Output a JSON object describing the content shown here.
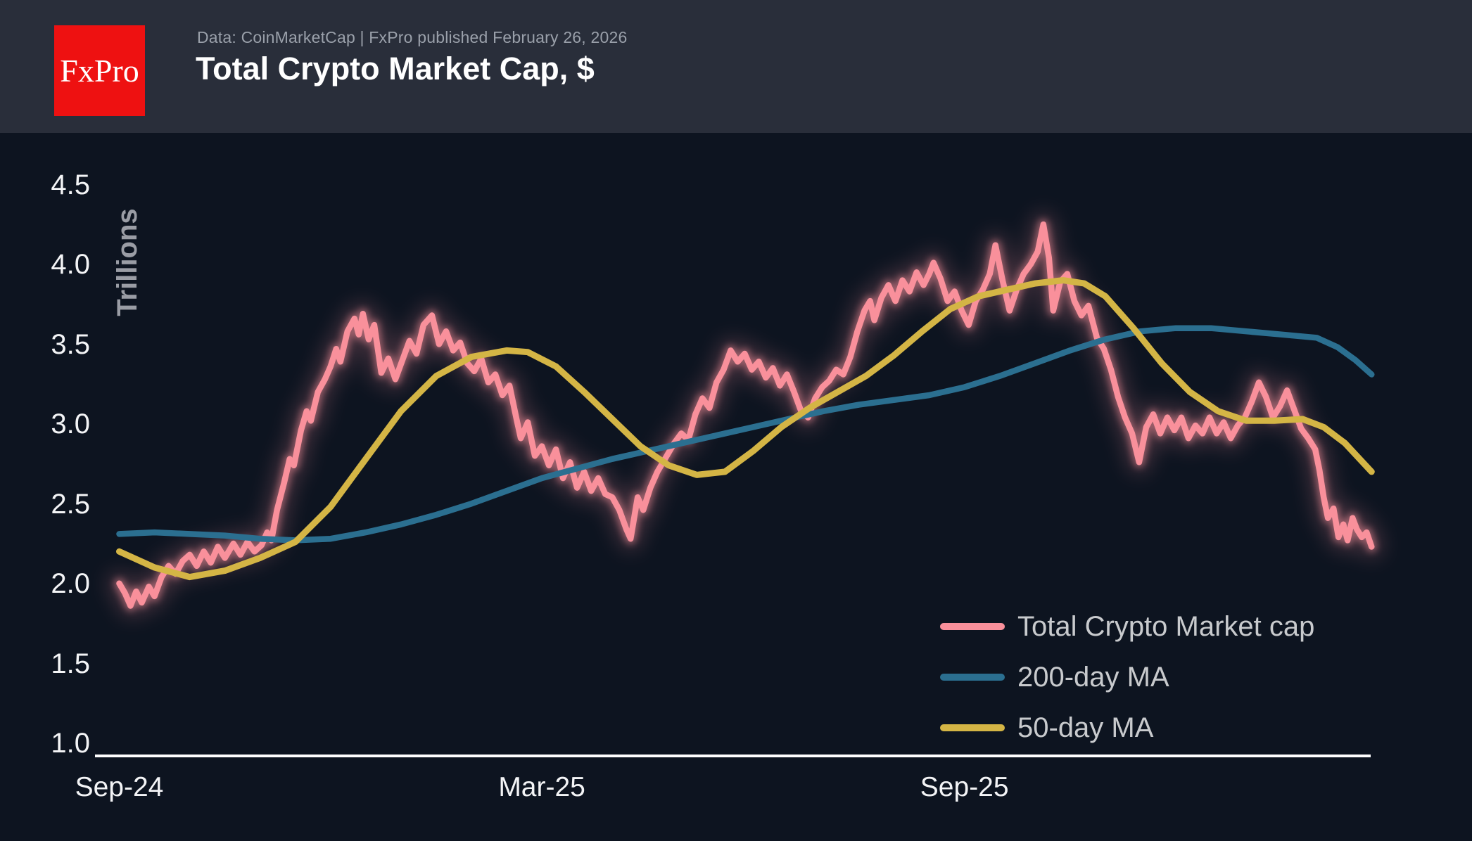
{
  "header": {
    "logo_text": "FxPro",
    "logo_color": "#ee1111",
    "subtitle": "Data: CoinMarketCap | FxPro published February 26, 2026",
    "title": "Total Crypto Market Cap, $"
  },
  "colors": {
    "page_background": "#0d1420",
    "header_background": "#292e3a",
    "axis_line": "#ffffff",
    "tick_label": "#f3f4f6",
    "legend_label": "#c8cacd",
    "y_axis_title": "#9a9da5"
  },
  "chart_data": {
    "type": "line",
    "title": "Total Crypto Market Cap, $",
    "ylabel": "Trillions",
    "xlabel": "",
    "grid": false,
    "legend_position": "bottom-right",
    "ylim": [
      1.0,
      4.5
    ],
    "y_ticks": [
      {
        "label": "4.5",
        "value": 4.5
      },
      {
        "label": "4.0",
        "value": 4.0
      },
      {
        "label": "3.5",
        "value": 3.5
      },
      {
        "label": "3.0",
        "value": 3.0
      },
      {
        "label": "2.5",
        "value": 2.5
      },
      {
        "label": "2.0",
        "value": 2.0
      },
      {
        "label": "1.5",
        "value": 1.5
      },
      {
        "label": "1.0",
        "value": 1.0
      }
    ],
    "x_unit": "months since Sep-2024",
    "x_range": [
      0,
      17.78
    ],
    "x_ticks": [
      {
        "label": "Sep-24",
        "t": 0
      },
      {
        "label": "Mar-25",
        "t": 6
      },
      {
        "label": "Sep-25",
        "t": 12
      }
    ],
    "series": [
      {
        "name": "Total Crypto Market cap",
        "color": "#f9909b",
        "glow": true,
        "points": [
          [
            0.0,
            2.02
          ],
          [
            0.08,
            1.96
          ],
          [
            0.16,
            1.88
          ],
          [
            0.24,
            1.97
          ],
          [
            0.32,
            1.9
          ],
          [
            0.42,
            2.0
          ],
          [
            0.5,
            1.94
          ],
          [
            0.6,
            2.06
          ],
          [
            0.7,
            2.13
          ],
          [
            0.8,
            2.08
          ],
          [
            0.9,
            2.16
          ],
          [
            1.0,
            2.2
          ],
          [
            1.1,
            2.13
          ],
          [
            1.2,
            2.22
          ],
          [
            1.3,
            2.15
          ],
          [
            1.4,
            2.25
          ],
          [
            1.5,
            2.18
          ],
          [
            1.62,
            2.27
          ],
          [
            1.72,
            2.2
          ],
          [
            1.82,
            2.28
          ],
          [
            1.92,
            2.22
          ],
          [
            2.02,
            2.26
          ],
          [
            2.1,
            2.34
          ],
          [
            2.16,
            2.29
          ],
          [
            2.24,
            2.48
          ],
          [
            2.34,
            2.65
          ],
          [
            2.42,
            2.8
          ],
          [
            2.48,
            2.76
          ],
          [
            2.58,
            2.98
          ],
          [
            2.66,
            3.1
          ],
          [
            2.72,
            3.04
          ],
          [
            2.82,
            3.22
          ],
          [
            2.92,
            3.3
          ],
          [
            3.0,
            3.38
          ],
          [
            3.08,
            3.49
          ],
          [
            3.14,
            3.41
          ],
          [
            3.24,
            3.6
          ],
          [
            3.34,
            3.68
          ],
          [
            3.4,
            3.58
          ],
          [
            3.46,
            3.71
          ],
          [
            3.54,
            3.55
          ],
          [
            3.62,
            3.64
          ],
          [
            3.72,
            3.34
          ],
          [
            3.82,
            3.43
          ],
          [
            3.92,
            3.3
          ],
          [
            4.02,
            3.42
          ],
          [
            4.12,
            3.54
          ],
          [
            4.22,
            3.46
          ],
          [
            4.32,
            3.64
          ],
          [
            4.44,
            3.7
          ],
          [
            4.54,
            3.52
          ],
          [
            4.64,
            3.6
          ],
          [
            4.74,
            3.48
          ],
          [
            4.84,
            3.53
          ],
          [
            4.94,
            3.4
          ],
          [
            5.04,
            3.35
          ],
          [
            5.14,
            3.43
          ],
          [
            5.24,
            3.28
          ],
          [
            5.34,
            3.33
          ],
          [
            5.44,
            3.2
          ],
          [
            5.54,
            3.26
          ],
          [
            5.64,
            3.05
          ],
          [
            5.7,
            2.93
          ],
          [
            5.8,
            3.03
          ],
          [
            5.9,
            2.82
          ],
          [
            6.0,
            2.88
          ],
          [
            6.1,
            2.76
          ],
          [
            6.2,
            2.86
          ],
          [
            6.3,
            2.68
          ],
          [
            6.4,
            2.78
          ],
          [
            6.5,
            2.62
          ],
          [
            6.6,
            2.72
          ],
          [
            6.7,
            2.6
          ],
          [
            6.8,
            2.68
          ],
          [
            6.9,
            2.58
          ],
          [
            7.0,
            2.56
          ],
          [
            7.1,
            2.48
          ],
          [
            7.2,
            2.36
          ],
          [
            7.26,
            2.3
          ],
          [
            7.36,
            2.56
          ],
          [
            7.44,
            2.48
          ],
          [
            7.54,
            2.62
          ],
          [
            7.64,
            2.72
          ],
          [
            7.76,
            2.81
          ],
          [
            7.88,
            2.9
          ],
          [
            7.98,
            2.96
          ],
          [
            8.08,
            2.92
          ],
          [
            8.18,
            3.08
          ],
          [
            8.28,
            3.18
          ],
          [
            8.38,
            3.12
          ],
          [
            8.48,
            3.28
          ],
          [
            8.58,
            3.36
          ],
          [
            8.68,
            3.48
          ],
          [
            8.78,
            3.41
          ],
          [
            8.88,
            3.46
          ],
          [
            8.98,
            3.36
          ],
          [
            9.08,
            3.41
          ],
          [
            9.18,
            3.31
          ],
          [
            9.28,
            3.37
          ],
          [
            9.38,
            3.26
          ],
          [
            9.48,
            3.33
          ],
          [
            9.58,
            3.22
          ],
          [
            9.68,
            3.1
          ],
          [
            9.78,
            3.06
          ],
          [
            9.88,
            3.18
          ],
          [
            9.98,
            3.25
          ],
          [
            10.08,
            3.29
          ],
          [
            10.18,
            3.36
          ],
          [
            10.28,
            3.33
          ],
          [
            10.38,
            3.44
          ],
          [
            10.48,
            3.6
          ],
          [
            10.58,
            3.73
          ],
          [
            10.66,
            3.79
          ],
          [
            10.72,
            3.67
          ],
          [
            10.82,
            3.81
          ],
          [
            10.92,
            3.89
          ],
          [
            11.02,
            3.79
          ],
          [
            11.12,
            3.92
          ],
          [
            11.22,
            3.85
          ],
          [
            11.32,
            3.97
          ],
          [
            11.42,
            3.89
          ],
          [
            11.5,
            3.96
          ],
          [
            11.56,
            4.03
          ],
          [
            11.66,
            3.93
          ],
          [
            11.76,
            3.79
          ],
          [
            11.86,
            3.85
          ],
          [
            11.96,
            3.73
          ],
          [
            12.06,
            3.64
          ],
          [
            12.16,
            3.79
          ],
          [
            12.26,
            3.86
          ],
          [
            12.36,
            3.96
          ],
          [
            12.44,
            4.14
          ],
          [
            12.54,
            3.92
          ],
          [
            12.64,
            3.73
          ],
          [
            12.74,
            3.86
          ],
          [
            12.84,
            3.96
          ],
          [
            12.94,
            4.02
          ],
          [
            13.04,
            4.1
          ],
          [
            13.12,
            4.27
          ],
          [
            13.2,
            4.06
          ],
          [
            13.26,
            3.73
          ],
          [
            13.36,
            3.91
          ],
          [
            13.46,
            3.96
          ],
          [
            13.56,
            3.79
          ],
          [
            13.66,
            3.7
          ],
          [
            13.76,
            3.76
          ],
          [
            13.88,
            3.56
          ],
          [
            13.98,
            3.49
          ],
          [
            14.08,
            3.36
          ],
          [
            14.18,
            3.19
          ],
          [
            14.28,
            3.06
          ],
          [
            14.38,
            2.96
          ],
          [
            14.48,
            2.78
          ],
          [
            14.58,
            3.0
          ],
          [
            14.68,
            3.08
          ],
          [
            14.78,
            2.96
          ],
          [
            14.88,
            3.06
          ],
          [
            14.98,
            2.98
          ],
          [
            15.08,
            3.06
          ],
          [
            15.18,
            2.93
          ],
          [
            15.28,
            3.01
          ],
          [
            15.38,
            2.96
          ],
          [
            15.48,
            3.06
          ],
          [
            15.58,
            2.96
          ],
          [
            15.68,
            3.03
          ],
          [
            15.78,
            2.93
          ],
          [
            15.88,
            3.01
          ],
          [
            15.98,
            3.06
          ],
          [
            16.08,
            3.16
          ],
          [
            16.18,
            3.28
          ],
          [
            16.28,
            3.19
          ],
          [
            16.38,
            3.06
          ],
          [
            16.48,
            3.13
          ],
          [
            16.58,
            3.23
          ],
          [
            16.68,
            3.11
          ],
          [
            16.78,
            2.99
          ],
          [
            16.88,
            2.93
          ],
          [
            16.98,
            2.86
          ],
          [
            17.04,
            2.73
          ],
          [
            17.1,
            2.56
          ],
          [
            17.16,
            2.43
          ],
          [
            17.24,
            2.49
          ],
          [
            17.31,
            2.31
          ],
          [
            17.38,
            2.39
          ],
          [
            17.44,
            2.29
          ],
          [
            17.51,
            2.43
          ],
          [
            17.57,
            2.36
          ],
          [
            17.64,
            2.31
          ],
          [
            17.71,
            2.34
          ],
          [
            17.78,
            2.25
          ]
        ]
      },
      {
        "name": "200-day MA",
        "color": "#2b6f90",
        "glow": false,
        "points": [
          [
            0.0,
            2.33
          ],
          [
            0.5,
            2.34
          ],
          [
            1.0,
            2.33
          ],
          [
            1.5,
            2.32
          ],
          [
            2.0,
            2.3
          ],
          [
            2.5,
            2.29
          ],
          [
            3.0,
            2.3
          ],
          [
            3.5,
            2.34
          ],
          [
            4.0,
            2.39
          ],
          [
            4.5,
            2.45
          ],
          [
            5.0,
            2.52
          ],
          [
            5.5,
            2.6
          ],
          [
            6.0,
            2.68
          ],
          [
            6.5,
            2.74
          ],
          [
            7.0,
            2.8
          ],
          [
            7.5,
            2.85
          ],
          [
            8.0,
            2.9
          ],
          [
            8.5,
            2.95
          ],
          [
            9.0,
            3.0
          ],
          [
            9.5,
            3.05
          ],
          [
            10.0,
            3.1
          ],
          [
            10.5,
            3.14
          ],
          [
            11.0,
            3.17
          ],
          [
            11.5,
            3.2
          ],
          [
            12.0,
            3.25
          ],
          [
            12.5,
            3.32
          ],
          [
            13.0,
            3.4
          ],
          [
            13.5,
            3.48
          ],
          [
            14.0,
            3.55
          ],
          [
            14.5,
            3.6
          ],
          [
            15.0,
            3.62
          ],
          [
            15.5,
            3.62
          ],
          [
            16.0,
            3.6
          ],
          [
            16.5,
            3.58
          ],
          [
            17.0,
            3.56
          ],
          [
            17.3,
            3.5
          ],
          [
            17.55,
            3.42
          ],
          [
            17.78,
            3.33
          ]
        ]
      },
      {
        "name": "50-day MA",
        "color": "#d4b545",
        "glow": false,
        "points": [
          [
            0.0,
            2.22
          ],
          [
            0.5,
            2.12
          ],
          [
            1.0,
            2.06
          ],
          [
            1.5,
            2.1
          ],
          [
            2.0,
            2.18
          ],
          [
            2.5,
            2.28
          ],
          [
            3.0,
            2.5
          ],
          [
            3.5,
            2.8
          ],
          [
            4.0,
            3.1
          ],
          [
            4.5,
            3.32
          ],
          [
            5.0,
            3.44
          ],
          [
            5.5,
            3.48
          ],
          [
            5.8,
            3.47
          ],
          [
            6.2,
            3.38
          ],
          [
            6.6,
            3.22
          ],
          [
            7.0,
            3.05
          ],
          [
            7.4,
            2.88
          ],
          [
            7.8,
            2.76
          ],
          [
            8.2,
            2.7
          ],
          [
            8.6,
            2.72
          ],
          [
            9.0,
            2.85
          ],
          [
            9.4,
            3.0
          ],
          [
            9.8,
            3.12
          ],
          [
            10.2,
            3.22
          ],
          [
            10.6,
            3.32
          ],
          [
            11.0,
            3.45
          ],
          [
            11.4,
            3.6
          ],
          [
            11.8,
            3.74
          ],
          [
            12.2,
            3.82
          ],
          [
            12.6,
            3.86
          ],
          [
            13.0,
            3.9
          ],
          [
            13.4,
            3.92
          ],
          [
            13.7,
            3.9
          ],
          [
            14.0,
            3.82
          ],
          [
            14.4,
            3.62
          ],
          [
            14.8,
            3.4
          ],
          [
            15.2,
            3.22
          ],
          [
            15.6,
            3.1
          ],
          [
            16.0,
            3.04
          ],
          [
            16.4,
            3.04
          ],
          [
            16.8,
            3.05
          ],
          [
            17.1,
            3.0
          ],
          [
            17.4,
            2.9
          ],
          [
            17.78,
            2.72
          ]
        ]
      }
    ]
  }
}
